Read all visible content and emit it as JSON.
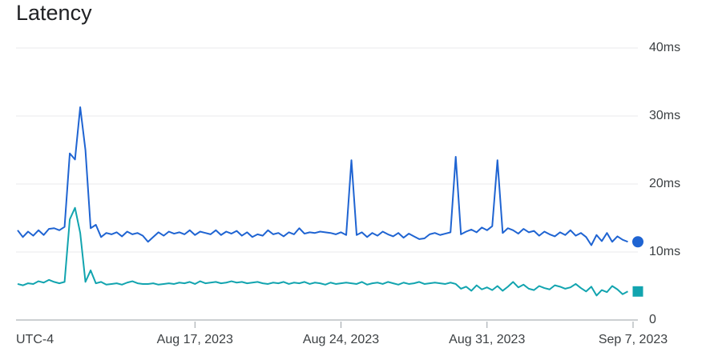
{
  "chart_data": {
    "type": "line",
    "title": "Latency",
    "timezone_label": "UTC-4",
    "xlim": [
      0,
      118
    ],
    "xticks": [
      {
        "value": 34,
        "label": "Aug 17, 2023"
      },
      {
        "value": 62,
        "label": "Aug 24, 2023"
      },
      {
        "value": 90,
        "label": "Aug 31, 2023"
      },
      {
        "value": 118,
        "label": "Sep 7, 2023"
      }
    ],
    "ylim": [
      0,
      40
    ],
    "yticks": [
      0,
      {
        "value": 10,
        "label": "10ms"
      },
      {
        "value": 20,
        "label": "20ms"
      },
      {
        "value": 30,
        "label": "30ms"
      },
      {
        "value": 40,
        "label": "40ms"
      }
    ],
    "grid": true,
    "series": [
      {
        "color": "#1f64d2",
        "marker": "circle",
        "values": [
          13.2,
          12.2,
          13,
          12.4,
          13.2,
          12.5,
          13.4,
          13.5,
          13.2,
          13.7,
          24.5,
          23.6,
          31.3,
          25,
          13.5,
          14,
          12.2,
          12.8,
          12.6,
          12.9,
          12.3,
          13,
          12.6,
          12.8,
          12.4,
          11.5,
          12.2,
          12.9,
          12.4,
          13,
          12.7,
          12.9,
          12.6,
          13.2,
          12.5,
          13,
          12.8,
          12.6,
          13.2,
          12.5,
          13,
          12.7,
          13.1,
          12.4,
          12.9,
          12.2,
          12.6,
          12.4,
          13.2,
          12.6,
          12.8,
          12.3,
          12.9,
          12.6,
          13.5,
          12.7,
          12.9,
          12.8,
          13,
          12.9,
          12.8,
          12.6,
          12.9,
          12.5,
          23.5,
          12.5,
          12.9,
          12.2,
          12.8,
          12.4,
          13,
          12.6,
          12.3,
          12.8,
          12.1,
          12.7,
          12.3,
          11.9,
          12,
          12.6,
          12.8,
          12.5,
          12.7,
          12.9,
          24,
          12.6,
          13,
          13.3,
          12.9,
          13.6,
          13.2,
          13.8,
          23.5,
          12.8,
          13.5,
          13.2,
          12.7,
          13.4,
          12.9,
          13.1,
          12.4,
          13,
          12.6,
          12.3,
          12.9,
          12.5,
          13.2,
          12.4,
          12.8,
          12.2,
          11,
          12.5,
          11.6,
          12.8,
          11.5,
          12.3,
          11.8,
          11.5
        ]
      },
      {
        "color": "#12a4af",
        "marker": "square",
        "values": [
          5.3,
          5.1,
          5.4,
          5.3,
          5.7,
          5.5,
          5.9,
          5.6,
          5.4,
          5.6,
          14.8,
          16.5,
          12.8,
          5.6,
          7.3,
          5.4,
          5.6,
          5.2,
          5.3,
          5.4,
          5.2,
          5.5,
          5.7,
          5.4,
          5.3,
          5.3,
          5.4,
          5.2,
          5.3,
          5.4,
          5.3,
          5.5,
          5.4,
          5.6,
          5.3,
          5.7,
          5.4,
          5.5,
          5.6,
          5.4,
          5.5,
          5.7,
          5.5,
          5.6,
          5.4,
          5.5,
          5.6,
          5.4,
          5.3,
          5.5,
          5.4,
          5.6,
          5.3,
          5.5,
          5.4,
          5.6,
          5.3,
          5.5,
          5.4,
          5.2,
          5.5,
          5.3,
          5.4,
          5.5,
          5.4,
          5.3,
          5.6,
          5.2,
          5.4,
          5.5,
          5.3,
          5.6,
          5.4,
          5.2,
          5.5,
          5.3,
          5.4,
          5.6,
          5.3,
          5.4,
          5.5,
          5.4,
          5.3,
          5.5,
          5.3,
          4.6,
          4.9,
          4.3,
          5.1,
          4.5,
          4.8,
          4.4,
          5,
          4.3,
          4.9,
          5.6,
          4.8,
          5.2,
          4.6,
          4.4,
          5,
          4.7,
          4.5,
          5.1,
          4.9,
          4.6,
          4.8,
          5.3,
          4.7,
          4.2,
          4.9,
          3.6,
          4.4,
          4.1,
          5,
          4.5,
          3.8,
          4.2
        ]
      }
    ]
  }
}
